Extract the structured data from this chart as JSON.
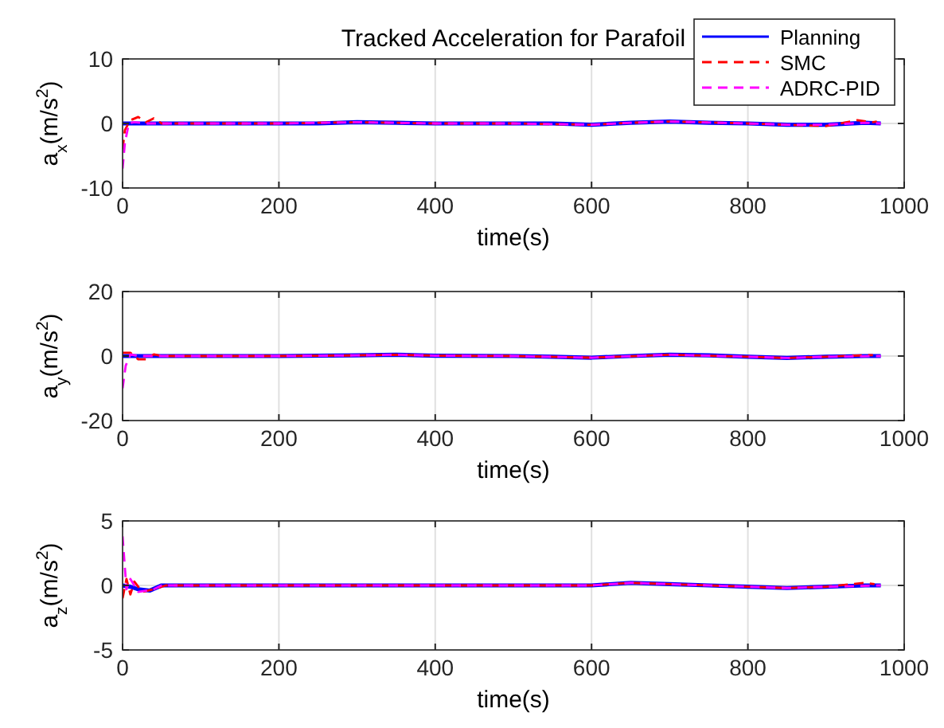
{
  "chart_data": [
    {
      "type": "line",
      "title": "Tracked Acceleration for Parafoil",
      "xlabel": "time(s)",
      "ylabel": "a$_{x}$(m/s$^{2}$)",
      "xlim": [
        0,
        1000
      ],
      "ylim": [
        -10,
        10
      ],
      "xticks": [
        0,
        200,
        400,
        600,
        800,
        1000
      ],
      "yticks": [
        -10,
        0,
        10
      ],
      "grid": true,
      "legend": "top right",
      "series": [
        {
          "name": "Planning",
          "color": "#0000ff",
          "line_style": "solid",
          "x": [
            0,
            20,
            40,
            60,
            100,
            200,
            250,
            300,
            350,
            400,
            450,
            500,
            550,
            600,
            650,
            700,
            750,
            800,
            850,
            900,
            950,
            970
          ],
          "values": [
            0,
            0,
            0,
            0,
            0,
            0,
            0,
            0.2,
            0.1,
            0,
            0,
            0,
            0,
            -0.2,
            0.1,
            0.3,
            0.1,
            0,
            -0.2,
            -0.2,
            0.1,
            0
          ]
        },
        {
          "name": "SMC",
          "color": "#ff0000",
          "line_style": "dashed",
          "x": [
            0,
            3,
            10,
            20,
            30,
            40,
            50,
            60,
            100,
            200,
            300,
            400,
            500,
            600,
            650,
            700,
            800,
            850,
            900,
            940,
            960,
            965
          ],
          "values": [
            -4,
            -1,
            0.5,
            1,
            0.2,
            0.8,
            0,
            0,
            0,
            0,
            0.2,
            0,
            0,
            -0.2,
            0.1,
            0.3,
            0,
            -0.2,
            -0.4,
            0.5,
            0.2,
            0.3
          ]
        },
        {
          "name": "ADRC-PID",
          "color": "#ff00ff",
          "line_style": "dashed",
          "x": [
            0,
            3,
            8,
            15,
            30,
            60,
            100,
            200,
            300,
            400,
            500,
            600,
            650,
            700,
            800,
            850,
            900,
            950,
            970
          ],
          "values": [
            -7,
            -3,
            0,
            0.2,
            0,
            0,
            0,
            0,
            0.2,
            0,
            0,
            -0.2,
            0.1,
            0.3,
            0,
            -0.2,
            -0.2,
            0.1,
            0
          ]
        }
      ]
    },
    {
      "type": "line",
      "xlabel": "time(s)",
      "ylabel": "a$_{y}$(m/s$^{2}$)",
      "xlim": [
        0,
        1000
      ],
      "ylim": [
        -20,
        20
      ],
      "xticks": [
        0,
        200,
        400,
        600,
        800,
        1000
      ],
      "yticks": [
        -20,
        0,
        20
      ],
      "grid": true,
      "series": [
        {
          "color": "#0000ff",
          "line_style": "solid",
          "x": [
            0,
            20,
            40,
            60,
            100,
            200,
            300,
            350,
            400,
            500,
            550,
            600,
            650,
            700,
            750,
            800,
            850,
            900,
            950,
            970
          ],
          "values": [
            0,
            0,
            0,
            0,
            0,
            0,
            0.2,
            0.4,
            0.1,
            0,
            -0.2,
            -0.5,
            0,
            0.4,
            0.2,
            -0.2,
            -0.6,
            -0.2,
            0,
            0
          ]
        },
        {
          "color": "#ff0000",
          "line_style": "dashed",
          "x": [
            0,
            10,
            20,
            30,
            40,
            50,
            60,
            100,
            200,
            300,
            350,
            400,
            500,
            600,
            700,
            800,
            850,
            900,
            960
          ],
          "values": [
            1,
            1,
            -1,
            -1,
            0.5,
            0,
            0,
            0,
            0,
            0.2,
            0.4,
            0.1,
            0,
            -0.5,
            0.4,
            -0.2,
            -0.6,
            -0.2,
            0.3
          ]
        },
        {
          "color": "#ff00ff",
          "line_style": "dashed",
          "x": [
            0,
            4,
            10,
            20,
            60,
            100,
            200,
            300,
            350,
            400,
            500,
            600,
            700,
            800,
            850,
            900,
            970
          ],
          "values": [
            -10,
            -3,
            0.5,
            0,
            0,
            0,
            0,
            0.2,
            0.4,
            0.1,
            0,
            -0.5,
            0.4,
            -0.2,
            -0.6,
            -0.2,
            0
          ]
        }
      ]
    },
    {
      "type": "line",
      "xlabel": "time(s)",
      "ylabel": "a$_{z}$(m/s$^{2}$)",
      "xlim": [
        0,
        1000
      ],
      "ylim": [
        -5,
        5
      ],
      "xticks": [
        0,
        200,
        400,
        600,
        800,
        1000
      ],
      "yticks": [
        -5,
        0,
        5
      ],
      "grid": true,
      "series": [
        {
          "color": "#0000ff",
          "line_style": "solid",
          "x": [
            0,
            10,
            20,
            35,
            50,
            70,
            100,
            200,
            300,
            400,
            500,
            600,
            650,
            700,
            750,
            800,
            850,
            900,
            950,
            970
          ],
          "values": [
            0,
            -0.1,
            -0.3,
            -0.4,
            0,
            0,
            0,
            0,
            0,
            0,
            0,
            0,
            0.2,
            0.1,
            0,
            -0.1,
            -0.2,
            -0.1,
            0,
            0
          ]
        },
        {
          "color": "#ff0000",
          "line_style": "dashed",
          "x": [
            0,
            5,
            10,
            15,
            25,
            40,
            55,
            100,
            200,
            300,
            400,
            500,
            600,
            650,
            700,
            800,
            850,
            900,
            950,
            962
          ],
          "values": [
            -1,
            0.5,
            -0.7,
            0.3,
            -0.5,
            -0.3,
            0,
            0,
            0,
            0,
            0,
            0,
            0,
            0.2,
            0.1,
            -0.1,
            -0.2,
            -0.1,
            0.2,
            0.1
          ]
        },
        {
          "color": "#ff00ff",
          "line_style": "dashed",
          "x": [
            0,
            5,
            10,
            20,
            40,
            50,
            100,
            200,
            300,
            400,
            500,
            600,
            650,
            700,
            800,
            850,
            900,
            970
          ],
          "values": [
            3.8,
            -0.3,
            0.5,
            -0.5,
            -0.3,
            0,
            0,
            0,
            0,
            0,
            0,
            0,
            0.2,
            0.1,
            -0.1,
            -0.2,
            -0.1,
            0
          ]
        }
      ]
    }
  ]
}
